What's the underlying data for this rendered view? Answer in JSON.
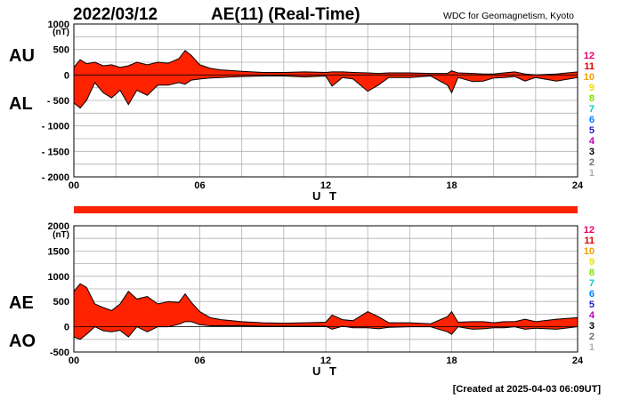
{
  "header": {
    "date": "2022/03/12",
    "title": "AE(11) (Real-Time)",
    "source": "WDC for Geomagnetism, Kyoto"
  },
  "footer": {
    "created": "[Created at 2025-04-03 06:09UT]"
  },
  "legend": {
    "items": [
      {
        "label": "12",
        "color": "#e8006a"
      },
      {
        "label": "11",
        "color": "#e00000"
      },
      {
        "label": "10",
        "color": "#f0a000"
      },
      {
        "label": "9",
        "color": "#e8e000"
      },
      {
        "label": "8",
        "color": "#80e000"
      },
      {
        "label": "7",
        "color": "#00d0c0"
      },
      {
        "label": "6",
        "color": "#0080ff"
      },
      {
        "label": "5",
        "color": "#2020c0"
      },
      {
        "label": "4",
        "color": "#c000c0"
      },
      {
        "label": "3",
        "color": "#000000"
      },
      {
        "label": "2",
        "color": "#707070"
      },
      {
        "label": "1",
        "color": "#b0b0b0"
      }
    ]
  },
  "colors": {
    "fill": "#ff2200",
    "grid": "#b0b0b0",
    "bar": "#ff2200"
  },
  "chart_data": [
    {
      "type": "area",
      "name": "AU/AL",
      "upper_label": "AU",
      "lower_label": "AL",
      "unit": "(nT)",
      "xlabel": "U T",
      "xlim": [
        0,
        24
      ],
      "ylim": [
        -2000,
        1000
      ],
      "yticks": [
        "1000",
        "500",
        "0",
        "- 500",
        "- 1000",
        "- 1500",
        "- 2000"
      ],
      "xticks": [
        "00",
        "06",
        "12",
        "18",
        "24"
      ],
      "x": [
        0,
        0.3,
        0.6,
        1.0,
        1.4,
        1.8,
        2.2,
        2.6,
        3.0,
        3.5,
        4.0,
        4.5,
        5.0,
        5.3,
        5.6,
        6.0,
        6.5,
        7.0,
        8.0,
        9.0,
        10.0,
        11.0,
        12.0,
        12.3,
        12.8,
        13.3,
        14.0,
        14.5,
        15.0,
        16.0,
        17.0,
        17.8,
        18.0,
        18.3,
        19.0,
        19.5,
        20.0,
        20.5,
        21.0,
        21.5,
        22.0,
        23.0,
        24.0
      ],
      "upper": [
        150,
        300,
        220,
        250,
        180,
        200,
        150,
        180,
        250,
        200,
        250,
        230,
        320,
        480,
        380,
        200,
        130,
        100,
        70,
        50,
        50,
        60,
        50,
        60,
        60,
        50,
        40,
        30,
        40,
        40,
        30,
        30,
        80,
        40,
        30,
        20,
        20,
        40,
        60,
        20,
        0,
        20,
        60
      ],
      "lower": [
        -550,
        -650,
        -500,
        -150,
        -350,
        -450,
        -300,
        -580,
        -300,
        -400,
        -200,
        -200,
        -150,
        -180,
        -100,
        -80,
        -60,
        -50,
        -30,
        -20,
        -20,
        -40,
        -20,
        -220,
        -50,
        -80,
        -320,
        -200,
        -50,
        -50,
        -20,
        -200,
        -350,
        -50,
        -130,
        -120,
        -60,
        -50,
        -30,
        -120,
        -50,
        -120,
        -50
      ]
    },
    {
      "type": "area",
      "name": "AE/AO",
      "upper_label": "AE",
      "lower_label": "AO",
      "unit": "(nT)",
      "xlabel": "U T",
      "xlim": [
        0,
        24
      ],
      "ylim": [
        -500,
        2000
      ],
      "yticks": [
        "2000",
        "1500",
        "1000",
        "500",
        "0",
        "-500"
      ],
      "xticks": [
        "00",
        "06",
        "12",
        "18",
        "24"
      ],
      "x": [
        0,
        0.3,
        0.6,
        1.0,
        1.4,
        1.8,
        2.2,
        2.6,
        3.0,
        3.5,
        4.0,
        4.5,
        5.0,
        5.3,
        5.6,
        6.0,
        6.5,
        7.0,
        8.0,
        9.0,
        10.0,
        11.0,
        12.0,
        12.3,
        12.8,
        13.3,
        14.0,
        14.5,
        15.0,
        16.0,
        17.0,
        17.8,
        18.0,
        18.3,
        19.0,
        19.5,
        20.0,
        20.5,
        21.0,
        21.5,
        22.0,
        23.0,
        24.0
      ],
      "upper": [
        700,
        850,
        780,
        450,
        380,
        320,
        450,
        700,
        550,
        600,
        450,
        500,
        480,
        650,
        480,
        300,
        180,
        140,
        100,
        80,
        70,
        80,
        90,
        230,
        140,
        120,
        300,
        200,
        80,
        80,
        60,
        200,
        300,
        90,
        100,
        100,
        80,
        100,
        100,
        150,
        100,
        150,
        180
      ],
      "lower": [
        -200,
        -250,
        -150,
        0,
        -80,
        -100,
        -70,
        -200,
        0,
        -100,
        0,
        0,
        50,
        100,
        100,
        40,
        20,
        20,
        20,
        10,
        10,
        10,
        10,
        -50,
        10,
        -20,
        -20,
        -40,
        -10,
        0,
        0,
        -100,
        -150,
        0,
        -50,
        -40,
        -20,
        -20,
        0,
        -50,
        -30,
        -50,
        0
      ]
    }
  ]
}
